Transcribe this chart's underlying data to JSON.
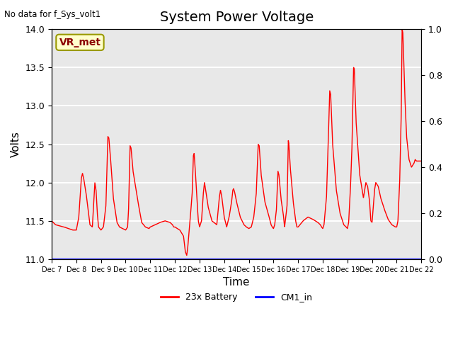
{
  "title": "System Power Voltage",
  "top_left_text": "No data for f_Sys_volt1",
  "ylabel_left": "Volts",
  "xlabel": "Time",
  "ylim_left": [
    11.0,
    14.0
  ],
  "ylim_right": [
    0.0,
    1.0
  ],
  "yticks_left": [
    11.0,
    11.5,
    12.0,
    12.5,
    13.0,
    13.5,
    14.0
  ],
  "yticks_right": [
    0.0,
    0.2,
    0.4,
    0.6,
    0.8,
    1.0
  ],
  "x_tick_labels": [
    "Dec 7",
    "Dec 8",
    "Dec 9",
    "Dec 10",
    "Dec 11",
    "Dec 12",
    "Dec 13",
    "Dec 14",
    "Dec 15",
    "Dec 16",
    "Dec 17",
    "Dec 18",
    "Dec 19",
    "Dec 20",
    "Dec 21",
    "Dec 22"
  ],
  "annotation_box_text": "VR_met",
  "annotation_box_color": "#ffffcc",
  "annotation_box_edge_color": "#999900",
  "annotation_text_color": "#8b0000",
  "line1_color": "red",
  "line2_color": "blue",
  "line1_label": "23x Battery",
  "line2_label": "CM1_in",
  "background_color": "#e8e8e8",
  "grid_color": "white",
  "title_fontsize": 14,
  "axis_label_fontsize": 11
}
